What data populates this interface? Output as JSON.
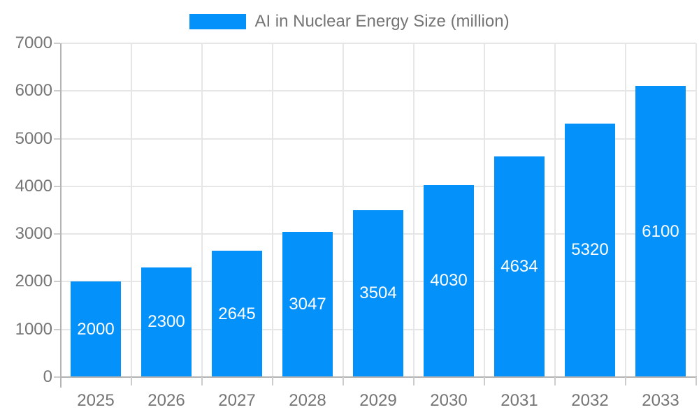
{
  "legend": {
    "label": "AI in Nuclear Energy Size (million)"
  },
  "chart_data": {
    "type": "bar",
    "title": "AI in Nuclear Energy Size (million)",
    "categories": [
      "2025",
      "2026",
      "2027",
      "2028",
      "2029",
      "2030",
      "2031",
      "2032",
      "2033"
    ],
    "values": [
      2000,
      2300,
      2645,
      3047,
      3504,
      4030,
      4634,
      5320,
      6100
    ],
    "series_name": "AI in Nuclear Energy Size (million)",
    "xlabel": "",
    "ylabel": "",
    "ylim": [
      0,
      7000
    ],
    "yticks": [
      0,
      1000,
      2000,
      3000,
      4000,
      5000,
      6000,
      7000
    ],
    "grid": true,
    "legend_position": "top-center",
    "bar_label_position": "inside-center",
    "colors": {
      "bar": "#0591fa",
      "bar_label": "#ffffff",
      "axis_text": "#757575",
      "legend_text": "#757575",
      "gridline": "#e6e6e6",
      "tick": "#cccccc",
      "axis_line": "#b3b3b3",
      "background": "#ffffff"
    }
  }
}
